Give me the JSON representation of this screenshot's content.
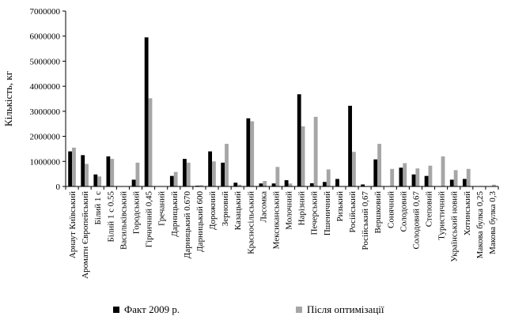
{
  "chart_data": {
    "type": "bar",
    "title": "",
    "xlabel": "",
    "ylabel": "Кількість, кг",
    "ylim": [
      0,
      7000000
    ],
    "yticks": [
      "0",
      "1000000",
      "2000000",
      "3000000",
      "4000000",
      "5000000",
      "6000000",
      "7000000"
    ],
    "grid": false,
    "legend_position": "bottom",
    "categories": [
      "Арнаут Київський",
      "Ароматн Європейський",
      "Білий 1 с",
      "Білий 1 с 0.55",
      "Васильківський",
      "Городський",
      "Гірчичний 0,45",
      "Гречаний",
      "Дарницький",
      "Дарницький 0.670",
      "Дарницький 600",
      "Дорожний",
      "Зерновий",
      "Казацький",
      "Красносільський",
      "Ласомка",
      "Мексиканський",
      "Молочний",
      "Нарізний",
      "Печерський",
      "Пшеничний",
      "Ризький",
      "Російський",
      "Російський 0,67",
      "Вершковий",
      "Сонячний",
      "Солодовий",
      "Солодовий 0,67",
      "Степовий",
      "Туристичний",
      "Український новий",
      "Хотинський",
      "Макова булка 0,25",
      "Макова булка 0,3"
    ],
    "series": [
      {
        "name": "Факт 2009 р.",
        "color": "#000000",
        "values": [
          1400000,
          1250000,
          480000,
          1200000,
          0,
          270000,
          5950000,
          0,
          420000,
          1100000,
          30000,
          1400000,
          950000,
          150000,
          2720000,
          120000,
          120000,
          250000,
          3680000,
          130000,
          180000,
          300000,
          3220000,
          80000,
          1080000,
          0,
          750000,
          480000,
          420000,
          0,
          270000,
          300000,
          0,
          0
        ]
      },
      {
        "name": "Після оптимізації",
        "color": "#a6a6a6",
        "values": [
          1550000,
          900000,
          400000,
          1100000,
          0,
          950000,
          3520000,
          0,
          580000,
          950000,
          50000,
          1000000,
          1700000,
          70000,
          2600000,
          220000,
          780000,
          120000,
          2400000,
          2780000,
          680000,
          0,
          1380000,
          0,
          1700000,
          700000,
          930000,
          720000,
          830000,
          1200000,
          650000,
          700000,
          20000,
          70000
        ]
      }
    ]
  }
}
